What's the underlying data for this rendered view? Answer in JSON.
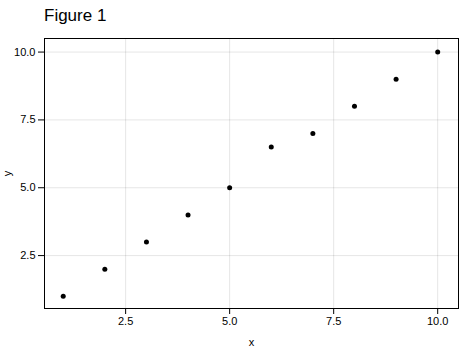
{
  "chart_data": {
    "type": "scatter",
    "title": "Figure 1",
    "x": [
      1,
      2,
      3,
      4,
      5,
      6,
      7,
      8,
      9,
      10
    ],
    "y": [
      1,
      2,
      3,
      4,
      5,
      6.5,
      7,
      8,
      9,
      10
    ],
    "xlabel": "x",
    "ylabel": "y",
    "xlim": [
      0.55,
      10.5
    ],
    "ylim": [
      0.55,
      10.5
    ],
    "xticks": [
      2.5,
      {
        "value": 5.0,
        "label": "5.0"
      },
      7.5,
      {
        "value": 10.0,
        "label": "10.0"
      }
    ],
    "yticks": [
      2.5,
      {
        "value": 5.0,
        "label": "5.0"
      },
      7.5,
      {
        "value": 10.0,
        "label": "10.0"
      }
    ],
    "color": "#000000",
    "grid": true
  }
}
